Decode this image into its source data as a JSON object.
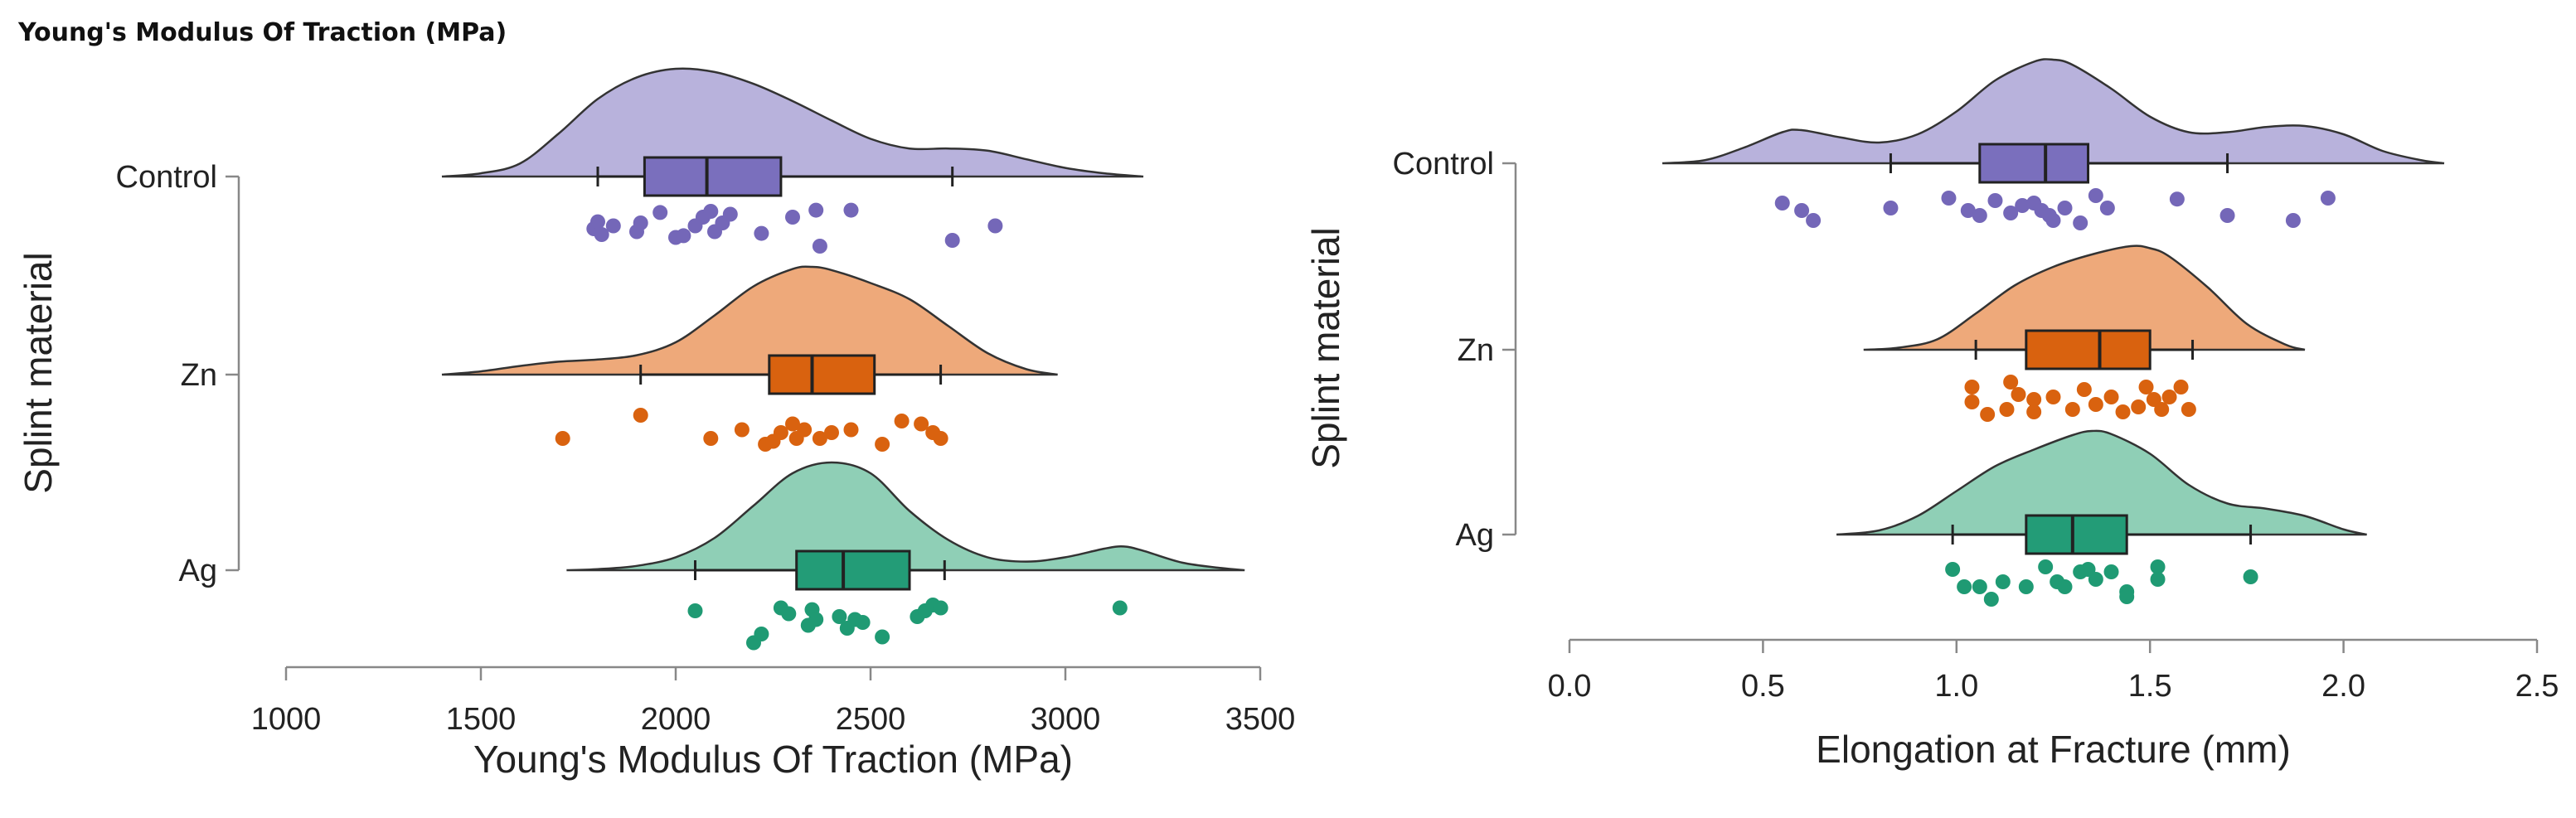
{
  "figure_title": "Young's Modulus Of Traction (MPa)",
  "colors": {
    "Control": {
      "fill": "#b8b2dc",
      "box": "#7a6fbd",
      "point": "#7467b8"
    },
    "Zn": {
      "fill": "#eea97a",
      "box": "#d9620f",
      "point": "#d9620f"
    },
    "Ag": {
      "fill": "#8fcfb6",
      "box": "#239c77",
      "point": "#1f9a73"
    }
  },
  "chart_data": [
    {
      "type": "raincloud",
      "title": "",
      "xlabel": "Young's Modulus Of Traction (MPa)",
      "ylabel": "Splint material",
      "xlim": [
        1000,
        3500
      ],
      "xticks": [
        "1000",
        "1500",
        "2000",
        "2500",
        "3000",
        "3500"
      ],
      "categories": [
        "Control",
        "Zn",
        "Ag"
      ],
      "series": [
        {
          "name": "Control",
          "density_range": [
            1400,
            3200
          ],
          "density": [
            [
              1400,
              0.0
            ],
            [
              1500,
              0.03
            ],
            [
              1600,
              0.12
            ],
            [
              1700,
              0.4
            ],
            [
              1800,
              0.72
            ],
            [
              1900,
              0.92
            ],
            [
              2000,
              1.0
            ],
            [
              2100,
              0.97
            ],
            [
              2200,
              0.86
            ],
            [
              2300,
              0.7
            ],
            [
              2400,
              0.52
            ],
            [
              2500,
              0.35
            ],
            [
              2600,
              0.26
            ],
            [
              2700,
              0.26
            ],
            [
              2800,
              0.24
            ],
            [
              2900,
              0.16
            ],
            [
              3000,
              0.08
            ],
            [
              3100,
              0.03
            ],
            [
              3200,
              0.0
            ]
          ],
          "box": {
            "whisker_low": 1800,
            "q1": 1920,
            "median": 2080,
            "q3": 2270,
            "whisker_high": 2710
          },
          "points": [
            [
              1790,
              0.5
            ],
            [
              1800,
              0.62
            ],
            [
              1810,
              0.4
            ],
            [
              1840,
              0.55
            ],
            [
              1900,
              0.45
            ],
            [
              1910,
              0.6
            ],
            [
              1960,
              0.78
            ],
            [
              2000,
              0.35
            ],
            [
              2020,
              0.38
            ],
            [
              2050,
              0.55
            ],
            [
              2070,
              0.7
            ],
            [
              2090,
              0.8
            ],
            [
              2100,
              0.45
            ],
            [
              2120,
              0.6
            ],
            [
              2140,
              0.75
            ],
            [
              2220,
              0.42
            ],
            [
              2300,
              0.7
            ],
            [
              2360,
              0.82
            ],
            [
              2370,
              0.2
            ],
            [
              2450,
              0.82
            ],
            [
              2710,
              0.3
            ],
            [
              2820,
              0.55
            ]
          ]
        },
        {
          "name": "Zn",
          "density_range": [
            1400,
            2980
          ],
          "density": [
            [
              1400,
              0.0
            ],
            [
              1500,
              0.03
            ],
            [
              1600,
              0.08
            ],
            [
              1700,
              0.12
            ],
            [
              1800,
              0.14
            ],
            [
              1900,
              0.18
            ],
            [
              2000,
              0.3
            ],
            [
              2100,
              0.55
            ],
            [
              2200,
              0.82
            ],
            [
              2300,
              0.98
            ],
            [
              2350,
              1.0
            ],
            [
              2400,
              0.97
            ],
            [
              2500,
              0.85
            ],
            [
              2600,
              0.7
            ],
            [
              2700,
              0.45
            ],
            [
              2800,
              0.2
            ],
            [
              2900,
              0.05
            ],
            [
              2980,
              0.0
            ]
          ],
          "box": {
            "whisker_low": 1910,
            "q1": 2240,
            "median": 2350,
            "q3": 2510,
            "whisker_high": 2680
          },
          "points": [
            [
              1710,
              0.3
            ],
            [
              1910,
              0.7
            ],
            [
              2090,
              0.3
            ],
            [
              2170,
              0.45
            ],
            [
              2230,
              0.2
            ],
            [
              2250,
              0.25
            ],
            [
              2270,
              0.4
            ],
            [
              2300,
              0.55
            ],
            [
              2310,
              0.3
            ],
            [
              2330,
              0.45
            ],
            [
              2370,
              0.3
            ],
            [
              2400,
              0.4
            ],
            [
              2450,
              0.45
            ],
            [
              2530,
              0.2
            ],
            [
              2580,
              0.6
            ],
            [
              2630,
              0.55
            ],
            [
              2660,
              0.4
            ],
            [
              2680,
              0.3
            ]
          ]
        },
        {
          "name": "Ag",
          "density_range": [
            1720,
            3460
          ],
          "density": [
            [
              1720,
              0.0
            ],
            [
              1800,
              0.01
            ],
            [
              1900,
              0.04
            ],
            [
              2000,
              0.12
            ],
            [
              2100,
              0.3
            ],
            [
              2200,
              0.6
            ],
            [
              2300,
              0.9
            ],
            [
              2400,
              1.0
            ],
            [
              2500,
              0.9
            ],
            [
              2600,
              0.55
            ],
            [
              2700,
              0.28
            ],
            [
              2800,
              0.12
            ],
            [
              2900,
              0.08
            ],
            [
              3000,
              0.12
            ],
            [
              3100,
              0.2
            ],
            [
              3150,
              0.22
            ],
            [
              3200,
              0.18
            ],
            [
              3300,
              0.07
            ],
            [
              3400,
              0.02
            ],
            [
              3460,
              0.0
            ]
          ],
          "box": {
            "whisker_low": 2050,
            "q1": 2310,
            "median": 2430,
            "q3": 2600,
            "whisker_high": 2690
          },
          "points": [
            [
              2050,
              0.7
            ],
            [
              2200,
              0.15
            ],
            [
              2220,
              0.3
            ],
            [
              2270,
              0.75
            ],
            [
              2290,
              0.65
            ],
            [
              2340,
              0.45
            ],
            [
              2350,
              0.72
            ],
            [
              2360,
              0.55
            ],
            [
              2420,
              0.6
            ],
            [
              2440,
              0.4
            ],
            [
              2460,
              0.55
            ],
            [
              2480,
              0.5
            ],
            [
              2530,
              0.25
            ],
            [
              2620,
              0.6
            ],
            [
              2640,
              0.7
            ],
            [
              2660,
              0.8
            ],
            [
              2680,
              0.75
            ],
            [
              3140,
              0.75
            ]
          ]
        }
      ]
    },
    {
      "type": "raincloud",
      "title": "",
      "xlabel": "Elongation at Fracture (mm)",
      "ylabel": "Splint material",
      "xlim": [
        0,
        2.5
      ],
      "xticks": [
        "0.0",
        "0.5",
        "1.0",
        "1.5",
        "2.0",
        "2.5"
      ],
      "categories": [
        "Control",
        "Zn",
        "Ag"
      ],
      "series": [
        {
          "name": "Control",
          "density_range": [
            0.24,
            2.26
          ],
          "density": [
            [
              0.24,
              0.0
            ],
            [
              0.35,
              0.03
            ],
            [
              0.45,
              0.15
            ],
            [
              0.55,
              0.3
            ],
            [
              0.6,
              0.32
            ],
            [
              0.7,
              0.25
            ],
            [
              0.8,
              0.2
            ],
            [
              0.9,
              0.28
            ],
            [
              1.0,
              0.5
            ],
            [
              1.1,
              0.8
            ],
            [
              1.2,
              0.98
            ],
            [
              1.25,
              1.0
            ],
            [
              1.3,
              0.95
            ],
            [
              1.4,
              0.72
            ],
            [
              1.5,
              0.45
            ],
            [
              1.6,
              0.3
            ],
            [
              1.7,
              0.3
            ],
            [
              1.8,
              0.35
            ],
            [
              1.9,
              0.36
            ],
            [
              2.0,
              0.28
            ],
            [
              2.1,
              0.12
            ],
            [
              2.2,
              0.03
            ],
            [
              2.26,
              0.0
            ]
          ],
          "box": {
            "whisker_low": 0.83,
            "q1": 1.06,
            "median": 1.23,
            "q3": 1.34,
            "whisker_high": 1.7
          },
          "points": [
            [
              0.55,
              0.7
            ],
            [
              0.6,
              0.55
            ],
            [
              0.63,
              0.35
            ],
            [
              0.83,
              0.6
            ],
            [
              0.98,
              0.8
            ],
            [
              1.03,
              0.55
            ],
            [
              1.06,
              0.45
            ],
            [
              1.1,
              0.75
            ],
            [
              1.14,
              0.5
            ],
            [
              1.17,
              0.65
            ],
            [
              1.2,
              0.7
            ],
            [
              1.22,
              0.55
            ],
            [
              1.24,
              0.45
            ],
            [
              1.25,
              0.35
            ],
            [
              1.28,
              0.6
            ],
            [
              1.32,
              0.3
            ],
            [
              1.36,
              0.85
            ],
            [
              1.39,
              0.6
            ],
            [
              1.57,
              0.78
            ],
            [
              1.7,
              0.45
            ],
            [
              1.87,
              0.35
            ],
            [
              1.96,
              0.8
            ]
          ]
        },
        {
          "name": "Zn",
          "density_range": [
            0.76,
            1.9
          ],
          "density": [
            [
              0.76,
              0.0
            ],
            [
              0.85,
              0.02
            ],
            [
              0.95,
              0.1
            ],
            [
              1.05,
              0.35
            ],
            [
              1.15,
              0.62
            ],
            [
              1.25,
              0.8
            ],
            [
              1.35,
              0.92
            ],
            [
              1.45,
              1.0
            ],
            [
              1.5,
              0.98
            ],
            [
              1.55,
              0.9
            ],
            [
              1.65,
              0.6
            ],
            [
              1.75,
              0.25
            ],
            [
              1.85,
              0.05
            ],
            [
              1.9,
              0.0
            ]
          ],
          "box": {
            "whisker_low": 1.05,
            "q1": 1.18,
            "median": 1.37,
            "q3": 1.5,
            "whisker_high": 1.61
          },
          "points": [
            [
              1.04,
              0.75
            ],
            [
              1.04,
              0.45
            ],
            [
              1.08,
              0.2
            ],
            [
              1.13,
              0.3
            ],
            [
              1.14,
              0.85
            ],
            [
              1.16,
              0.6
            ],
            [
              1.2,
              0.5
            ],
            [
              1.2,
              0.25
            ],
            [
              1.25,
              0.55
            ],
            [
              1.3,
              0.3
            ],
            [
              1.33,
              0.7
            ],
            [
              1.36,
              0.4
            ],
            [
              1.4,
              0.55
            ],
            [
              1.43,
              0.25
            ],
            [
              1.47,
              0.35
            ],
            [
              1.49,
              0.75
            ],
            [
              1.51,
              0.5
            ],
            [
              1.53,
              0.3
            ],
            [
              1.55,
              0.55
            ],
            [
              1.58,
              0.75
            ],
            [
              1.6,
              0.3
            ]
          ]
        },
        {
          "name": "Ag",
          "density_range": [
            0.69,
            2.06
          ],
          "density": [
            [
              0.69,
              0.0
            ],
            [
              0.8,
              0.04
            ],
            [
              0.9,
              0.18
            ],
            [
              1.0,
              0.42
            ],
            [
              1.1,
              0.66
            ],
            [
              1.2,
              0.82
            ],
            [
              1.3,
              0.96
            ],
            [
              1.35,
              1.0
            ],
            [
              1.4,
              0.97
            ],
            [
              1.5,
              0.78
            ],
            [
              1.6,
              0.48
            ],
            [
              1.7,
              0.3
            ],
            [
              1.8,
              0.25
            ],
            [
              1.9,
              0.18
            ],
            [
              2.0,
              0.05
            ],
            [
              2.06,
              0.0
            ]
          ],
          "box": {
            "whisker_low": 0.99,
            "q1": 1.18,
            "median": 1.3,
            "q3": 1.44,
            "whisker_high": 1.76
          },
          "points": [
            [
              0.99,
              0.8
            ],
            [
              1.02,
              0.45
            ],
            [
              1.06,
              0.45
            ],
            [
              1.09,
              0.2
            ],
            [
              1.12,
              0.55
            ],
            [
              1.18,
              0.45
            ],
            [
              1.23,
              0.85
            ],
            [
              1.26,
              0.55
            ],
            [
              1.28,
              0.45
            ],
            [
              1.32,
              0.75
            ],
            [
              1.34,
              0.8
            ],
            [
              1.36,
              0.6
            ],
            [
              1.4,
              0.75
            ],
            [
              1.44,
              0.35
            ],
            [
              1.44,
              0.25
            ],
            [
              1.52,
              0.85
            ],
            [
              1.52,
              0.6
            ],
            [
              1.76,
              0.65
            ]
          ]
        }
      ]
    }
  ]
}
